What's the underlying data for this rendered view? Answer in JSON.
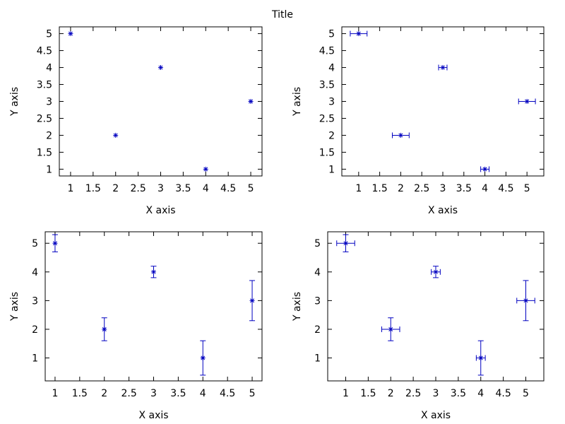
{
  "title": "Title",
  "colors": {
    "marker": "#0000c0",
    "frame": "#000000",
    "background": "#ffffff"
  },
  "chart_data": [
    {
      "type": "scatter",
      "error_bars": "none",
      "xlabel": "X axis",
      "ylabel": "Y axis",
      "xlim": [
        0.75,
        5.25
      ],
      "ylim": [
        0.8,
        5.2
      ],
      "xticks": [
        "1",
        "1.5",
        "2",
        "2.5",
        "3",
        "3.5",
        "4",
        "4.5",
        "5"
      ],
      "yticks": [
        "1",
        "1.5",
        "2",
        "2.5",
        "3",
        "3.5",
        "4",
        "4.5",
        "5"
      ],
      "x": [
        1,
        2,
        3,
        4,
        5
      ],
      "y": [
        5,
        2,
        4,
        1,
        3
      ]
    },
    {
      "type": "scatter",
      "error_bars": "x",
      "xlabel": "X axis",
      "ylabel": "Y axis",
      "xlim": [
        0.6,
        5.4
      ],
      "ylim": [
        0.8,
        5.2
      ],
      "xticks": [
        "1",
        "1.5",
        "2",
        "2.5",
        "3",
        "3.5",
        "4",
        "4.5",
        "5"
      ],
      "yticks": [
        "1",
        "1.5",
        "2",
        "2.5",
        "3",
        "3.5",
        "4",
        "4.5",
        "5"
      ],
      "x": [
        1,
        2,
        3,
        4,
        5
      ],
      "y": [
        5,
        2,
        4,
        1,
        3
      ],
      "x_err": [
        0.2,
        0.2,
        0.1,
        0.1,
        0.2
      ]
    },
    {
      "type": "scatter",
      "error_bars": "y",
      "xlabel": "X axis",
      "ylabel": "Y axis",
      "xlim": [
        0.8,
        5.2
      ],
      "ylim": [
        0.2,
        5.4
      ],
      "xticks": [
        "1",
        "1.5",
        "2",
        "2.5",
        "3",
        "3.5",
        "4",
        "4.5",
        "5"
      ],
      "yticks": [
        "1",
        "2",
        "3",
        "4",
        "5"
      ],
      "x": [
        1,
        2,
        3,
        4,
        5
      ],
      "y": [
        5,
        2,
        4,
        1,
        3
      ],
      "y_err": [
        0.3,
        0.4,
        0.2,
        0.6,
        0.7
      ]
    },
    {
      "type": "scatter",
      "error_bars": "xy",
      "xlabel": "X axis",
      "ylabel": "Y axis",
      "xlim": [
        0.6,
        5.4
      ],
      "ylim": [
        0.2,
        5.4
      ],
      "xticks": [
        "1",
        "1.5",
        "2",
        "2.5",
        "3",
        "3.5",
        "4",
        "4.5",
        "5"
      ],
      "yticks": [
        "1",
        "2",
        "3",
        "4",
        "5"
      ],
      "x": [
        1,
        2,
        3,
        4,
        5
      ],
      "y": [
        5,
        2,
        4,
        1,
        3
      ],
      "x_err": [
        0.2,
        0.2,
        0.1,
        0.1,
        0.2
      ],
      "y_err": [
        0.3,
        0.4,
        0.2,
        0.6,
        0.7
      ]
    }
  ]
}
